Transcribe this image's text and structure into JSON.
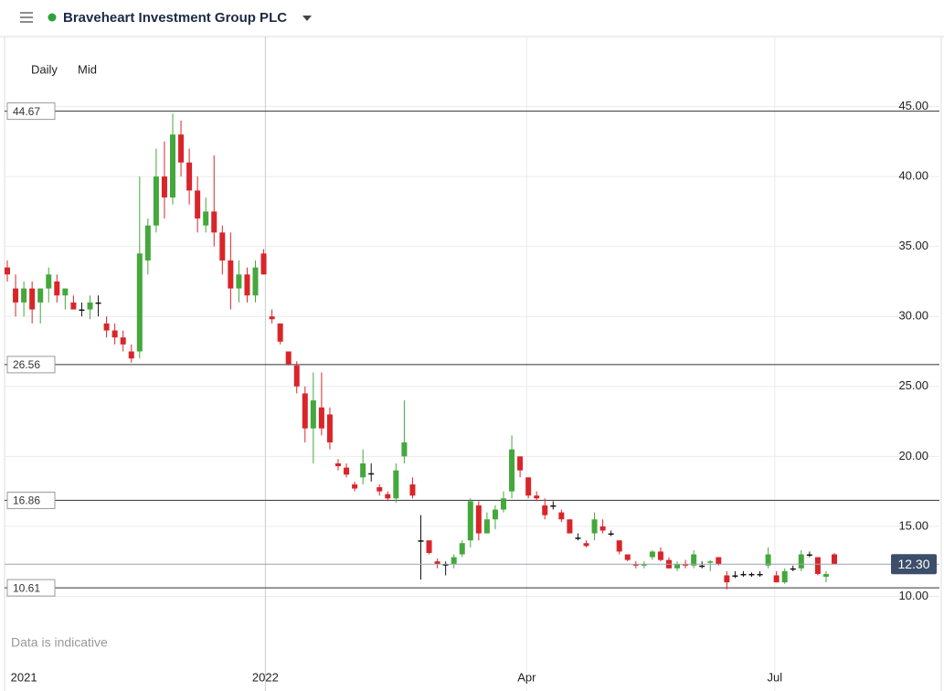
{
  "header": {
    "title": "Braveheart Investment Group PLC"
  },
  "toolbar": {
    "interval": "Daily",
    "price_type": "Mid"
  },
  "note": "Data is indicative",
  "chart_data": {
    "type": "candlestick",
    "up_color": "#44a83c",
    "down_color": "#d9252a",
    "flat_color": "#111111",
    "categories": [
      null,
      null,
      null,
      null,
      null,
      null,
      null,
      null,
      null,
      null,
      null,
      null,
      null,
      null,
      null,
      null,
      null,
      null,
      null,
      null,
      null,
      null,
      null,
      null,
      null,
      null,
      null,
      null,
      null,
      null,
      null,
      null,
      null,
      null,
      null,
      null,
      null,
      null,
      null,
      null,
      null,
      null,
      null,
      null,
      null,
      null,
      null,
      null,
      null,
      null,
      null,
      null,
      null,
      null,
      null,
      null,
      null,
      null,
      null,
      null,
      null,
      null,
      null,
      null,
      null,
      null,
      null,
      null,
      null,
      null,
      null,
      null,
      null,
      null,
      null,
      null,
      null,
      null,
      null,
      null,
      null,
      null,
      null,
      null,
      null,
      null,
      null,
      null,
      null,
      null,
      null,
      null,
      null,
      null,
      null,
      null,
      null,
      null,
      null,
      null,
      null
    ],
    "open": [
      33.5,
      32,
      31,
      32,
      31,
      32,
      32.5,
      31.5,
      31,
      30.5,
      30.5,
      31,
      29.5,
      29,
      28.5,
      27.5,
      27.5,
      34,
      36.5,
      40,
      38.5,
      43,
      41,
      39,
      36.5,
      37.5,
      36,
      34,
      32,
      33,
      31.5,
      34.5,
      30,
      29.5,
      27.5,
      26.5,
      24.5,
      22,
      23.5,
      23,
      19.5,
      19.2,
      18,
      18.5,
      18.8,
      17.8,
      17.3,
      17,
      20,
      18,
      14,
      14,
      12.5,
      12.3,
      12.3,
      13,
      14,
      16.5,
      14.5,
      15.5,
      16.2,
      17.5,
      20,
      18.5,
      17.2,
      16.5,
      16.5,
      16,
      15.5,
      14.2,
      13.8,
      14.5,
      15,
      14.5,
      14,
      13,
      12.3,
      12.2,
      12.8,
      13.2,
      12.6,
      12,
      12.3,
      12.2,
      12.2,
      12.4,
      12.8,
      11.5,
      11.5,
      11.6,
      11.6,
      11.6,
      12.2,
      11.5,
      11,
      12,
      12,
      13,
      12.8,
      11.4,
      13
    ],
    "high": [
      34,
      33,
      32.5,
      32.5,
      32,
      33.5,
      33,
      32,
      31.5,
      31,
      31.5,
      31.5,
      30,
      29.5,
      29,
      28,
      40,
      37,
      42,
      42.5,
      44.5,
      44,
      42,
      40,
      38.5,
      41.5,
      36.5,
      36,
      34,
      33.5,
      34,
      34.8,
      30.5,
      29.5,
      27.5,
      26.8,
      25,
      26,
      26,
      23.5,
      19.8,
      19.5,
      18.2,
      20.5,
      19.5,
      18,
      17.5,
      19.5,
      24,
      18.5,
      15.8,
      14,
      12.7,
      12.5,
      13,
      14,
      17,
      16.8,
      16,
      16.5,
      17.5,
      21.5,
      20,
      18.5,
      17.5,
      17,
      16.8,
      16.2,
      15.5,
      14.5,
      14,
      16,
      15.5,
      14.7,
      14,
      13,
      12.5,
      12.5,
      13.3,
      13.5,
      12.8,
      12.5,
      12.6,
      13.3,
      12.5,
      12.6,
      12.8,
      11.8,
      11.8,
      11.8,
      11.7,
      11.8,
      13.5,
      11.8,
      12,
      12.2,
      13.3,
      13.2,
      12.8,
      11.8,
      13.1
    ],
    "low": [
      32.5,
      30,
      30,
      29.5,
      29.5,
      31,
      31,
      30.5,
      30.5,
      30,
      29.8,
      30,
      28.5,
      28,
      27.5,
      26.7,
      27,
      33,
      36,
      37,
      38,
      40,
      38,
      36,
      36,
      35,
      33,
      30.5,
      31,
      31,
      31,
      33,
      29.5,
      28,
      26.5,
      24.5,
      21,
      19.5,
      21.5,
      20.5,
      19,
      18.5,
      17.5,
      18,
      18.2,
      17.2,
      16.8,
      16.7,
      19.5,
      17,
      11.2,
      13,
      12,
      11.5,
      12,
      12.8,
      13.5,
      14,
      14.5,
      14.8,
      16,
      17,
      18.5,
      17,
      16.8,
      15.5,
      16.2,
      15.3,
      14.5,
      14,
      13.5,
      14,
      14.5,
      14.3,
      13,
      12.5,
      12,
      12,
      12.6,
      12.5,
      12,
      11.8,
      12,
      12,
      12,
      11.8,
      12.2,
      10.5,
      11.3,
      11.4,
      11.4,
      11.4,
      12,
      11,
      10.9,
      11.8,
      11.8,
      12.8,
      11.5,
      11,
      12.3
    ],
    "close": [
      33,
      31,
      32,
      30.5,
      32,
      33,
      31.5,
      32,
      30.5,
      30.5,
      31,
      31,
      29,
      28.5,
      28,
      27,
      34.5,
      36.5,
      40,
      38.5,
      43,
      41,
      39,
      37,
      37.5,
      36,
      34,
      32,
      33,
      31.5,
      33.5,
      33,
      29.8,
      28.2,
      26.6,
      25,
      22,
      24,
      22,
      21,
      19.3,
      18.7,
      17.7,
      19.5,
      18.8,
      17.5,
      17,
      19,
      21,
      17.2,
      14,
      13.1,
      12.3,
      12.3,
      12.8,
      13.8,
      16.8,
      14.5,
      15.5,
      16.2,
      17,
      20.5,
      19,
      17.2,
      17,
      15.8,
      16.5,
      15.5,
      14.5,
      14.2,
      13.6,
      15.5,
      14.7,
      14.5,
      13.2,
      12.6,
      12.2,
      12.3,
      13.2,
      12.6,
      12,
      12.3,
      12.2,
      13,
      12.2,
      12.5,
      12.3,
      11,
      11.5,
      11.6,
      11.6,
      11.6,
      13,
      11,
      11.8,
      12,
      13,
      13,
      11.6,
      11.6,
      12.3
    ],
    "ylim": [
      5,
      50
    ],
    "yticks": [
      {
        "value": 10,
        "label": "10.00"
      },
      {
        "value": 15,
        "label": "15.00"
      },
      {
        "value": 20,
        "label": "20.00"
      },
      {
        "value": 25,
        "label": "25.00"
      },
      {
        "value": 30,
        "label": "30.00"
      },
      {
        "value": 35,
        "label": "35.00"
      },
      {
        "value": 40,
        "label": "40.00"
      },
      {
        "value": 45,
        "label": "45.00"
      }
    ],
    "xlim": [
      -0.3,
      101.6
    ],
    "xticks": [
      {
        "value": 2,
        "label": "2021"
      },
      {
        "value": 31.2,
        "label": "2022"
      },
      {
        "value": 62.8,
        "label": "Apr"
      },
      {
        "value": 92.8,
        "label": "Jul"
      }
    ],
    "levels": [
      {
        "value": 44.67,
        "label": "44.67"
      },
      {
        "value": 26.56,
        "label": "26.56"
      },
      {
        "value": 16.86,
        "label": "16.86"
      },
      {
        "value": 10.61,
        "label": "10.61"
      }
    ],
    "last_price": {
      "value": 12.3,
      "label": "12.30"
    },
    "grid": true
  }
}
